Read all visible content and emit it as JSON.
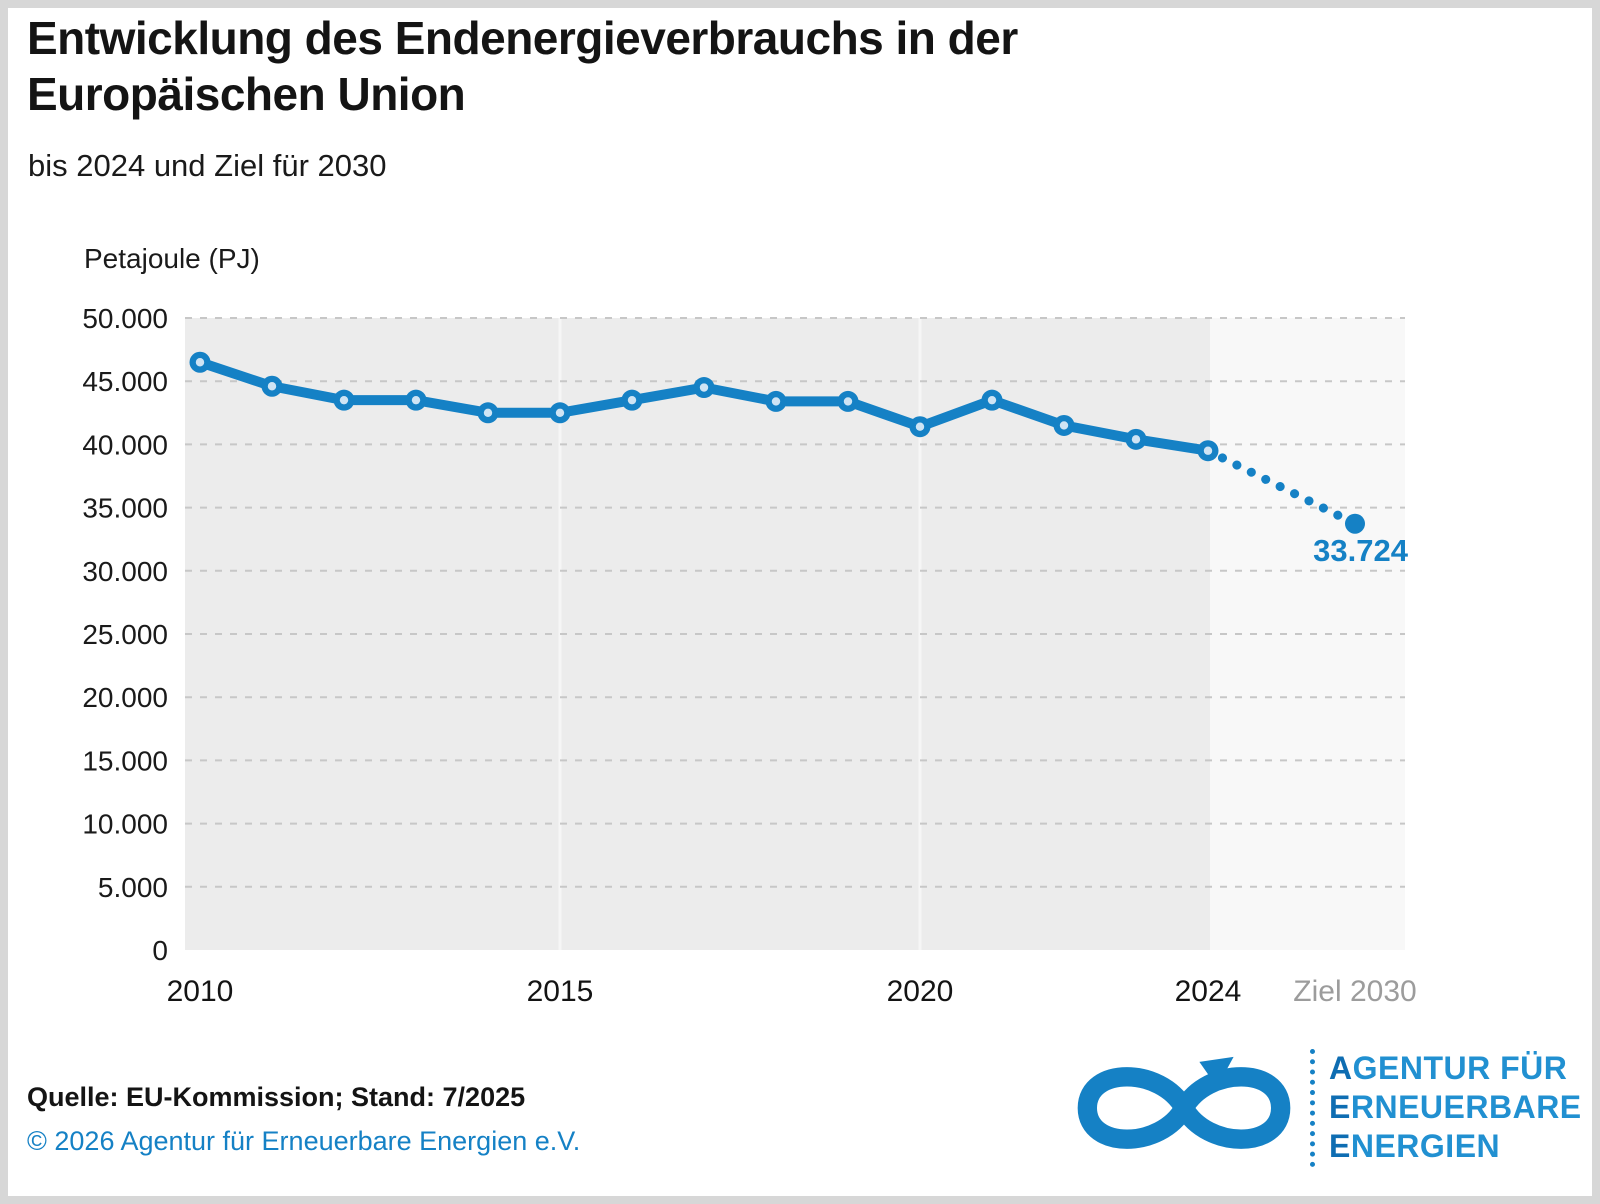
{
  "title": "Entwicklung des Endenergieverbrauchs in der Europäischen Union",
  "subtitle": "bis 2024 und Ziel für 2030",
  "y_axis_unit": "Petajoule (PJ)",
  "footer": {
    "source": "Quelle: EU-Kommission; Stand: 7/2025",
    "copyright": "© 2026 Agentur für Erneuerbare Energien e.V."
  },
  "logo": {
    "name": "Agentur für Erneuerbare Energien",
    "lines": [
      {
        "lead": "A",
        "rest": "GENTUR FÜR"
      },
      {
        "lead": "E",
        "rest": "RNEUERBARE"
      },
      {
        "lead": "E",
        "rest": "NERGIEN"
      }
    ]
  },
  "colors": {
    "accent": "#1581c5",
    "marker_inner": "#cfe4f4",
    "plot_bg": "#ececec",
    "forecast_bg": "#f8f8f8",
    "grid": "#c7c7c7",
    "panel_divider": "#f6f6f6",
    "xlabel_muted": "#9c9c9c"
  },
  "chart_data": {
    "type": "line",
    "title": "Entwicklung des Endenergieverbrauchs in der Europäischen Union",
    "subtitle": "bis 2024 und Ziel für 2030",
    "ylabel": "Petajoule (PJ)",
    "ylim": [
      0,
      50000
    ],
    "grid": "horizontal dashed",
    "years": [
      2010,
      2011,
      2012,
      2013,
      2014,
      2015,
      2016,
      2017,
      2018,
      2019,
      2020,
      2021,
      2022,
      2023,
      2024
    ],
    "values": [
      46500,
      44600,
      43500,
      43500,
      42500,
      42500,
      43500,
      44500,
      43400,
      43400,
      41400,
      43500,
      41500,
      40400,
      39500
    ],
    "target": {
      "x_label": "Ziel 2030",
      "value": 33724,
      "value_label": "33.724",
      "style": "dotted-projection"
    },
    "yticks": [
      {
        "value": 0,
        "label": "0"
      },
      {
        "value": 5000,
        "label": "5.000"
      },
      {
        "value": 10000,
        "label": "10.000"
      },
      {
        "value": 15000,
        "label": "15.000"
      },
      {
        "value": 20000,
        "label": "20.000"
      },
      {
        "value": 25000,
        "label": "25.000"
      },
      {
        "value": 30000,
        "label": "30.000"
      },
      {
        "value": 35000,
        "label": "35.000"
      },
      {
        "value": 40000,
        "label": "40.000"
      },
      {
        "value": 45000,
        "label": "45.000"
      },
      {
        "value": 50000,
        "label": "50.000"
      }
    ],
    "xticks": [
      {
        "label": "2010",
        "year": 2010
      },
      {
        "label": "2015",
        "year": 2015
      },
      {
        "label": "2020",
        "year": 2020
      },
      {
        "label": "2024",
        "year": 2024
      },
      {
        "label": "Ziel 2030",
        "target": true
      }
    ]
  }
}
